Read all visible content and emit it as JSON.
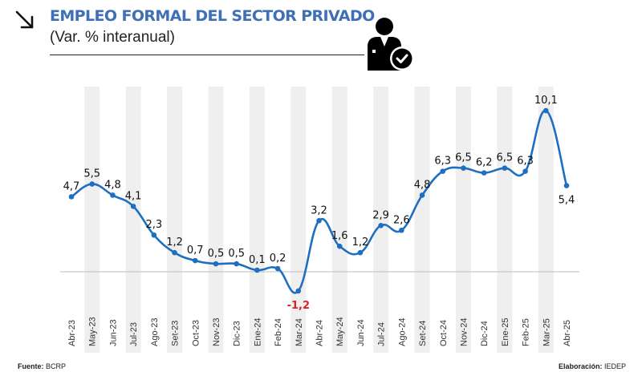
{
  "header": {
    "title": "EMPLEO FORMAL DEL SECTOR PRIVADO",
    "subtitle": "(Var. % interanual)",
    "trend_icon": "arrow-down-right-icon",
    "illustration_icon": "person-check-icon"
  },
  "colors": {
    "title": "#3f6fb5",
    "line": "#1f6fc1",
    "negative_label": "#e02020",
    "stripe": "#efefef",
    "zero_line": "#bdbdbd"
  },
  "chart_data": {
    "type": "line",
    "title": "EMPLEO FORMAL DEL SECTOR PRIVADO",
    "subtitle": "(Var. % interanual)",
    "xlabel": "",
    "ylabel": "",
    "categories": [
      "Abr-23",
      "May-23",
      "Jun-23",
      "Jul-23",
      "Ago-23",
      "Set-23",
      "Oct-23",
      "Nov-23",
      "Dic-23",
      "Ene-24",
      "Feb-24",
      "Mar-24",
      "Abr-24",
      "May-24",
      "Jun-24",
      "Jul-24",
      "Ago-24",
      "Set-24",
      "Oct-24",
      "Nov-24",
      "Dic-24",
      "Ene-25",
      "Feb-25",
      "Mar-25",
      "Abr-25"
    ],
    "series": [
      {
        "name": "Empleo formal del sector privado",
        "values": [
          4.7,
          5.5,
          4.8,
          4.1,
          2.3,
          1.2,
          0.7,
          0.5,
          0.5,
          0.1,
          0.2,
          -1.2,
          3.2,
          1.6,
          1.2,
          2.9,
          2.6,
          4.8,
          6.3,
          6.5,
          6.2,
          6.5,
          6.3,
          10.1,
          5.4
        ],
        "labels": [
          "4,7",
          "5,5",
          "4,8",
          "4,1",
          "2,3",
          "1,2",
          "0,7",
          "0,5",
          "0,5",
          "0,1",
          "0,2",
          "-1,2",
          "3,2",
          "1,6",
          "1,2",
          "2,9",
          "2,6",
          "4,8",
          "6,3",
          "6,5",
          "6,2",
          "6,5",
          "6,3",
          "10,1",
          "5,4"
        ]
      }
    ],
    "ylim": [
      -2,
      11
    ],
    "zero_line": true,
    "grid": false,
    "alternating_column_shading": true,
    "legend": "none"
  },
  "footer": {
    "source_label": "Fuente:",
    "source_value": "BCRP",
    "credit_label": "Elaboración:",
    "credit_value": "IEDEP"
  }
}
